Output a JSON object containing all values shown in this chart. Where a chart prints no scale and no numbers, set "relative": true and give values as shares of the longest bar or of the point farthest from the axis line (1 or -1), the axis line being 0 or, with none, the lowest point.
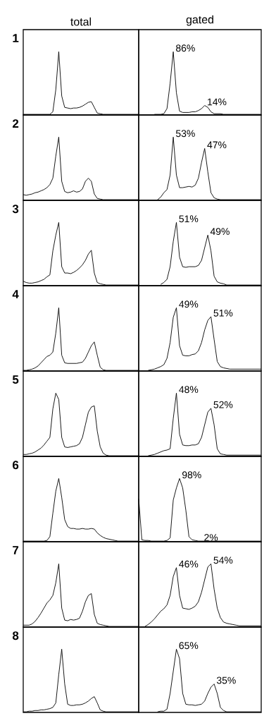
{
  "chart_data": [
    {
      "type": "line",
      "relative": true,
      "title": "total",
      "ylabel": "1",
      "categories": [
        null,
        null,
        null,
        null,
        null,
        null,
        null,
        null,
        null,
        null,
        null,
        null,
        null,
        null,
        null,
        null,
        null,
        null,
        null,
        null,
        null,
        null,
        null,
        null,
        null,
        null,
        null,
        null,
        null,
        null,
        null,
        null,
        null,
        null,
        null,
        null,
        null,
        null,
        null,
        null
      ],
      "series": [
        {
          "color": "#000000",
          "values": [
            0.01,
            0.01,
            0.01,
            0.01,
            0.01,
            0.01,
            0.01,
            0.01,
            0.01,
            0.01,
            0.05,
            0.4,
            1.0,
            0.3,
            0.12,
            0.11,
            0.1,
            0.11,
            0.11,
            0.12,
            0.14,
            0.17,
            0.2,
            0.21,
            0.12,
            0.03,
            0.02,
            0.01,
            0.01,
            0.01,
            0.01,
            0.01,
            0.01,
            0.01,
            0.01,
            0.01,
            0.01,
            0.01,
            0.01,
            0.01
          ]
        }
      ]
    },
    {
      "type": "line",
      "relative": true,
      "title": "gated",
      "categories": [
        null,
        null,
        null,
        null,
        null,
        null,
        null,
        null,
        null,
        null,
        null,
        null,
        null,
        null,
        null,
        null,
        null,
        null,
        null,
        null,
        null,
        null,
        null,
        null,
        null,
        null,
        null,
        null,
        null,
        null,
        null,
        null,
        null,
        null,
        null,
        null,
        null,
        null,
        null,
        null
      ],
      "series": [
        {
          "color": "#000000",
          "values": [
            null,
            null,
            null,
            null,
            null,
            0.01,
            0.01,
            0.01,
            0.02,
            0.1,
            0.5,
            1.0,
            0.35,
            0.06,
            0.04,
            0.04,
            0.04,
            0.05,
            0.05,
            0.07,
            0.1,
            0.15,
            0.12,
            0.05,
            0.02,
            0.02,
            0.02,
            0.01,
            0.01,
            0.01,
            0.01,
            0.01,
            0.01,
            0.01,
            0.01,
            0.01,
            0.01,
            0.01,
            0.01,
            0.01
          ]
        }
      ],
      "annotations": [
        "86%",
        "14%"
      ]
    },
    {
      "type": "line",
      "relative": true,
      "ylabel": "2",
      "categories": [
        null,
        null,
        null,
        null,
        null,
        null,
        null,
        null,
        null,
        null,
        null,
        null,
        null,
        null,
        null,
        null,
        null,
        null,
        null,
        null,
        null,
        null,
        null,
        null,
        null,
        null,
        null,
        null,
        null,
        null,
        null,
        null,
        null,
        null,
        null,
        null,
        null,
        null,
        null,
        null
      ],
      "series": [
        {
          "color": "#000000",
          "values": [
            0.09,
            0.08,
            0.09,
            0.1,
            0.12,
            0.13,
            0.15,
            0.17,
            0.2,
            0.25,
            0.35,
            0.7,
            1.0,
            0.3,
            0.14,
            0.12,
            0.13,
            0.15,
            0.13,
            0.14,
            0.18,
            0.3,
            0.35,
            0.3,
            0.1,
            0.03,
            0.02,
            0.01,
            0.01,
            0.01,
            0.01,
            0.01,
            0.01,
            0.01,
            0.01,
            0.01,
            0.01,
            0.01,
            0.01,
            0.01
          ]
        }
      ]
    },
    {
      "type": "line",
      "relative": true,
      "categories": [
        null,
        null,
        null,
        null,
        null,
        null,
        null,
        null,
        null,
        null,
        null,
        null,
        null,
        null,
        null,
        null,
        null,
        null,
        null,
        null,
        null,
        null,
        null,
        null,
        null,
        null,
        null,
        null,
        null,
        null,
        null,
        null,
        null,
        null,
        null,
        null,
        null,
        null,
        null,
        null
      ],
      "series": [
        {
          "color": "#000000",
          "values": [
            null,
            null,
            null,
            null,
            null,
            null,
            0.01,
            0.05,
            0.12,
            0.17,
            0.4,
            1.0,
            0.4,
            0.2,
            0.2,
            0.21,
            0.22,
            0.21,
            0.24,
            0.35,
            0.6,
            0.82,
            0.45,
            0.12,
            0.04,
            0.02,
            0.01,
            0.01,
            0.01,
            0.01,
            0.01,
            0.01,
            0.01,
            0.01,
            0.01,
            0.01,
            0.01,
            0.01,
            0.01,
            0.01
          ]
        }
      ],
      "annotations": [
        "53%",
        "47%"
      ]
    },
    {
      "type": "line",
      "relative": true,
      "ylabel": "3",
      "categories": [
        null,
        null,
        null,
        null,
        null,
        null,
        null,
        null,
        null,
        null,
        null,
        null,
        null,
        null,
        null,
        null,
        null,
        null,
        null,
        null,
        null,
        null,
        null,
        null,
        null,
        null,
        null,
        null,
        null,
        null,
        null,
        null,
        null,
        null,
        null,
        null,
        null,
        null,
        null,
        null
      ],
      "series": [
        {
          "color": "#000000",
          "values": [
            0.07,
            0.05,
            0.04,
            0.04,
            0.05,
            0.06,
            0.08,
            0.1,
            0.14,
            0.17,
            0.55,
            0.8,
            1.0,
            0.3,
            0.2,
            0.2,
            0.19,
            0.21,
            0.24,
            0.28,
            0.33,
            0.4,
            0.5,
            0.56,
            0.2,
            0.05,
            0.03,
            0.02,
            0.01,
            0.01,
            0.01,
            0.01,
            0.01,
            0.01,
            0.01,
            0.01,
            0.01,
            0.01,
            0.01,
            0.01
          ]
        }
      ]
    },
    {
      "type": "line",
      "relative": true,
      "categories": [
        null,
        null,
        null,
        null,
        null,
        null,
        null,
        null,
        null,
        null,
        null,
        null,
        null,
        null,
        null,
        null,
        null,
        null,
        null,
        null,
        null,
        null,
        null,
        null,
        null,
        null,
        null,
        null,
        null,
        null,
        null,
        null,
        null,
        null,
        null,
        null,
        null,
        null,
        null,
        null
      ],
      "series": [
        {
          "color": "#000000",
          "values": [
            null,
            null,
            null,
            null,
            null,
            null,
            null,
            0.02,
            0.05,
            0.1,
            0.3,
            0.7,
            1.0,
            0.45,
            0.3,
            0.29,
            0.3,
            0.3,
            0.3,
            0.32,
            0.4,
            0.6,
            0.8,
            0.55,
            0.15,
            0.06,
            0.04,
            0.03,
            0.01,
            0.01,
            0.01,
            0.01,
            0.01,
            0.01,
            0.01,
            0.01,
            0.01,
            0.01,
            0.01,
            0.01
          ]
        }
      ],
      "annotations": [
        "51%",
        "49%"
      ]
    },
    {
      "type": "line",
      "relative": true,
      "ylabel": "4",
      "categories": [
        null,
        null,
        null,
        null,
        null,
        null,
        null,
        null,
        null,
        null,
        null,
        null,
        null,
        null,
        null,
        null,
        null,
        null,
        null,
        null,
        null,
        null,
        null,
        null,
        null,
        null,
        null,
        null,
        null,
        null,
        null,
        null,
        null,
        null,
        null,
        null,
        null,
        null,
        null,
        null
      ],
      "series": [
        {
          "color": "#000000",
          "values": [
            0.01,
            0.01,
            0.02,
            0.03,
            0.05,
            0.08,
            0.13,
            0.18,
            0.23,
            0.25,
            0.3,
            0.6,
            1.0,
            0.25,
            0.13,
            0.12,
            0.12,
            0.12,
            0.12,
            0.13,
            0.14,
            0.2,
            0.3,
            0.4,
            0.46,
            0.25,
            0.06,
            0.02,
            0.01,
            0.01,
            0.01,
            0.01,
            0.01,
            0.01,
            0.01,
            0.01,
            0.01,
            0.01,
            0.01,
            0.01
          ]
        }
      ]
    },
    {
      "type": "line",
      "relative": true,
      "categories": [
        null,
        null,
        null,
        null,
        null,
        null,
        null,
        null,
        null,
        null,
        null,
        null,
        null,
        null,
        null,
        null,
        null,
        null,
        null,
        null,
        null,
        null,
        null,
        null,
        null,
        null,
        null,
        null,
        null,
        null,
        null,
        null,
        null,
        null,
        null,
        null,
        null,
        null,
        null,
        null
      ],
      "series": [
        {
          "color": "#000000",
          "values": [
            null,
            null,
            null,
            0.01,
            0.02,
            0.03,
            0.05,
            0.07,
            0.1,
            0.2,
            0.45,
            0.85,
            1.0,
            0.4,
            0.25,
            0.24,
            0.24,
            0.26,
            0.27,
            0.32,
            0.45,
            0.65,
            0.8,
            0.86,
            0.5,
            0.15,
            0.07,
            0.05,
            0.04,
            0.03,
            0.03,
            0.03,
            0.03,
            0.03,
            0.03,
            0.03,
            0.03,
            0.03,
            0.03,
            0.03
          ]
        }
      ],
      "annotations": [
        "49%",
        "51%"
      ]
    },
    {
      "type": "line",
      "relative": true,
      "ylabel": "5",
      "categories": [
        null,
        null,
        null,
        null,
        null,
        null,
        null,
        null,
        null,
        null,
        null,
        null,
        null,
        null,
        null,
        null,
        null,
        null,
        null,
        null,
        null,
        null,
        null,
        null,
        null,
        null,
        null,
        null,
        null,
        null,
        null,
        null,
        null,
        null,
        null,
        null,
        null,
        null,
        null,
        null
      ],
      "series": [
        {
          "color": "#000000",
          "values": [
            0.03,
            0.03,
            0.04,
            0.05,
            0.07,
            0.1,
            0.13,
            0.18,
            0.24,
            0.3,
            0.75,
            1.0,
            0.9,
            0.3,
            0.15,
            0.14,
            0.15,
            0.16,
            0.17,
            0.2,
            0.3,
            0.5,
            0.7,
            0.78,
            0.8,
            0.4,
            0.15,
            0.05,
            0.02,
            0.01,
            0.01,
            0.01,
            0.01,
            0.01,
            0.01,
            0.01,
            0.01,
            0.01,
            0.01,
            0.01
          ]
        }
      ]
    },
    {
      "type": "line",
      "relative": true,
      "categories": [
        null,
        null,
        null,
        null,
        null,
        null,
        null,
        null,
        null,
        null,
        null,
        null,
        null,
        null,
        null,
        null,
        null,
        null,
        null,
        null,
        null,
        null,
        null,
        null,
        null,
        null,
        null,
        null,
        null,
        null,
        null,
        null,
        null,
        null,
        null,
        null,
        null,
        null,
        null,
        null
      ],
      "series": [
        {
          "color": "#000000",
          "values": [
            null,
            null,
            null,
            0.01,
            0.02,
            0.03,
            0.05,
            0.07,
            0.09,
            0.1,
            0.12,
            0.6,
            1.0,
            0.35,
            0.18,
            0.17,
            0.17,
            0.18,
            0.18,
            0.2,
            0.3,
            0.5,
            0.7,
            0.76,
            0.5,
            0.12,
            0.04,
            0.03,
            0.02,
            0.02,
            0.02,
            0.02,
            0.02,
            0.02,
            0.02,
            0.02,
            0.02,
            0.02,
            0.02,
            0.02
          ]
        }
      ],
      "annotations": [
        "48%",
        "52%"
      ]
    },
    {
      "type": "line",
      "relative": true,
      "ylabel": "6",
      "categories": [
        null,
        null,
        null,
        null,
        null,
        null,
        null,
        null,
        null,
        null,
        null,
        null,
        null,
        null,
        null,
        null,
        null,
        null,
        null,
        null,
        null,
        null,
        null,
        null,
        null,
        null,
        null,
        null,
        null,
        null,
        null,
        null,
        null,
        null,
        null,
        null,
        null,
        null,
        null,
        null
      ],
      "series": [
        {
          "color": "#000000",
          "values": [
            0.01,
            0.01,
            0.01,
            0.01,
            0.01,
            0.01,
            0.01,
            0.01,
            0.02,
            0.08,
            0.45,
            0.8,
            1.0,
            0.7,
            0.35,
            0.24,
            0.21,
            0.21,
            0.2,
            0.2,
            0.21,
            0.2,
            0.2,
            0.21,
            0.2,
            0.14,
            0.1,
            0.07,
            0.05,
            0.04,
            0.03,
            0.02,
            0.01,
            0.01,
            0.01,
            0.01,
            0.01,
            0.01,
            0.01,
            0.01
          ]
        }
      ]
    },
    {
      "type": "line",
      "relative": true,
      "categories": [
        null,
        null,
        null,
        null,
        null,
        null,
        null,
        null,
        null,
        null,
        null,
        null,
        null,
        null,
        null,
        null,
        null,
        null,
        null,
        null,
        null,
        null,
        null,
        null,
        null,
        null,
        null,
        null,
        null,
        null,
        null,
        null,
        null,
        null,
        null,
        null,
        null,
        null,
        null,
        null
      ],
      "series": [
        {
          "color": "#000000",
          "values": [
            0.68,
            0.03,
            0.02,
            0.02,
            0.01,
            0.01,
            0.01,
            0.01,
            0.01,
            0.02,
            0.06,
            0.66,
            0.85,
            1.0,
            0.85,
            0.5,
            0.08,
            0.03,
            0.02,
            0.01,
            0.01,
            0.01,
            0.01,
            0.01,
            0.01,
            0.01,
            0.01,
            0.01,
            0.01,
            0.01,
            0.01,
            0.01,
            0.01,
            0.01,
            0.01,
            0.01,
            0.01,
            0.01,
            0.01,
            0.01
          ]
        }
      ],
      "annotations": [
        "98%",
        "2%"
      ]
    },
    {
      "type": "line",
      "relative": true,
      "ylabel": "7",
      "categories": [
        null,
        null,
        null,
        null,
        null,
        null,
        null,
        null,
        null,
        null,
        null,
        null,
        null,
        null,
        null,
        null,
        null,
        null,
        null,
        null,
        null,
        null,
        null,
        null,
        null,
        null,
        null,
        null,
        null,
        null,
        null,
        null,
        null,
        null,
        null,
        null,
        null,
        null,
        null,
        null
      ],
      "series": [
        {
          "color": "#000000",
          "values": [
            0.03,
            0.03,
            0.03,
            0.05,
            0.09,
            0.15,
            0.22,
            0.3,
            0.38,
            0.43,
            0.5,
            0.7,
            1.0,
            0.3,
            0.11,
            0.1,
            0.12,
            0.11,
            0.12,
            0.14,
            0.25,
            0.4,
            0.5,
            0.53,
            0.2,
            0.06,
            0.04,
            0.03,
            0.02,
            0.01,
            0.01,
            0.01,
            0.01,
            0.01,
            0.01,
            0.01,
            0.01,
            0.01,
            0.01,
            0.01
          ]
        }
      ]
    },
    {
      "type": "line",
      "relative": true,
      "categories": [
        null,
        null,
        null,
        null,
        null,
        null,
        null,
        null,
        null,
        null,
        null,
        null,
        null,
        null,
        null,
        null,
        null,
        null,
        null,
        null,
        null,
        null,
        null,
        null,
        null,
        null,
        null,
        null,
        null,
        null,
        null,
        null,
        null,
        null,
        null,
        null,
        null,
        null,
        null,
        null
      ],
      "series": [
        {
          "color": "#000000",
          "values": [
            null,
            null,
            0.01,
            0.04,
            0.08,
            0.13,
            0.19,
            0.25,
            0.29,
            0.35,
            0.5,
            0.8,
            0.94,
            0.5,
            0.3,
            0.29,
            0.28,
            0.3,
            0.33,
            0.4,
            0.55,
            0.75,
            0.95,
            1.0,
            0.6,
            0.3,
            0.15,
            0.08,
            0.06,
            0.05,
            0.04,
            0.03,
            0.02,
            0.02,
            0.02,
            0.02,
            0.02,
            0.02,
            0.02,
            0.02
          ]
        }
      ],
      "annotations": [
        "46%",
        "54%"
      ]
    },
    {
      "type": "line",
      "relative": true,
      "ylabel": "8",
      "categories": [
        null,
        null,
        null,
        null,
        null,
        null,
        null,
        null,
        null,
        null,
        null,
        null,
        null,
        null,
        null,
        null,
        null,
        null,
        null,
        null,
        null,
        null,
        null,
        null,
        null,
        null,
        null,
        null,
        null,
        null,
        null,
        null,
        null,
        null,
        null,
        null,
        null,
        null,
        null,
        null
      ],
      "series": [
        {
          "color": "#000000",
          "values": [
            0.01,
            0.01,
            0.02,
            0.02,
            0.03,
            0.03,
            0.04,
            0.04,
            0.05,
            0.06,
            0.08,
            0.15,
            0.6,
            1.0,
            0.45,
            0.13,
            0.11,
            0.11,
            0.12,
            0.12,
            0.13,
            0.15,
            0.18,
            0.22,
            0.25,
            0.15,
            0.04,
            0.02,
            0.01,
            0.01,
            0.01,
            0.01,
            0.01,
            0.01,
            0.01,
            0.01,
            0.01,
            0.01,
            0.01,
            0.01
          ]
        }
      ]
    },
    {
      "type": "line",
      "relative": true,
      "categories": [
        null,
        null,
        null,
        null,
        null,
        null,
        null,
        null,
        null,
        null,
        null,
        null,
        null,
        null,
        null,
        null,
        null,
        null,
        null,
        null,
        null,
        null,
        null,
        null,
        null,
        null,
        null,
        null,
        null,
        null,
        null,
        null,
        null,
        null,
        null,
        null,
        null,
        null,
        null,
        null
      ],
      "series": [
        {
          "color": "#000000",
          "values": [
            null,
            null,
            null,
            null,
            null,
            null,
            0.01,
            0.02,
            0.02,
            0.05,
            0.3,
            0.65,
            1.0,
            0.85,
            0.3,
            0.13,
            0.12,
            0.12,
            0.11,
            0.12,
            0.13,
            0.18,
            0.3,
            0.4,
            0.45,
            0.3,
            0.08,
            0.03,
            0.01,
            0.01,
            0.01,
            0.01,
            0.01,
            0.01,
            0.01,
            0.01,
            0.01,
            0.01,
            0.01,
            0.01
          ]
        }
      ],
      "annotations": [
        "65%",
        "35%"
      ]
    }
  ]
}
